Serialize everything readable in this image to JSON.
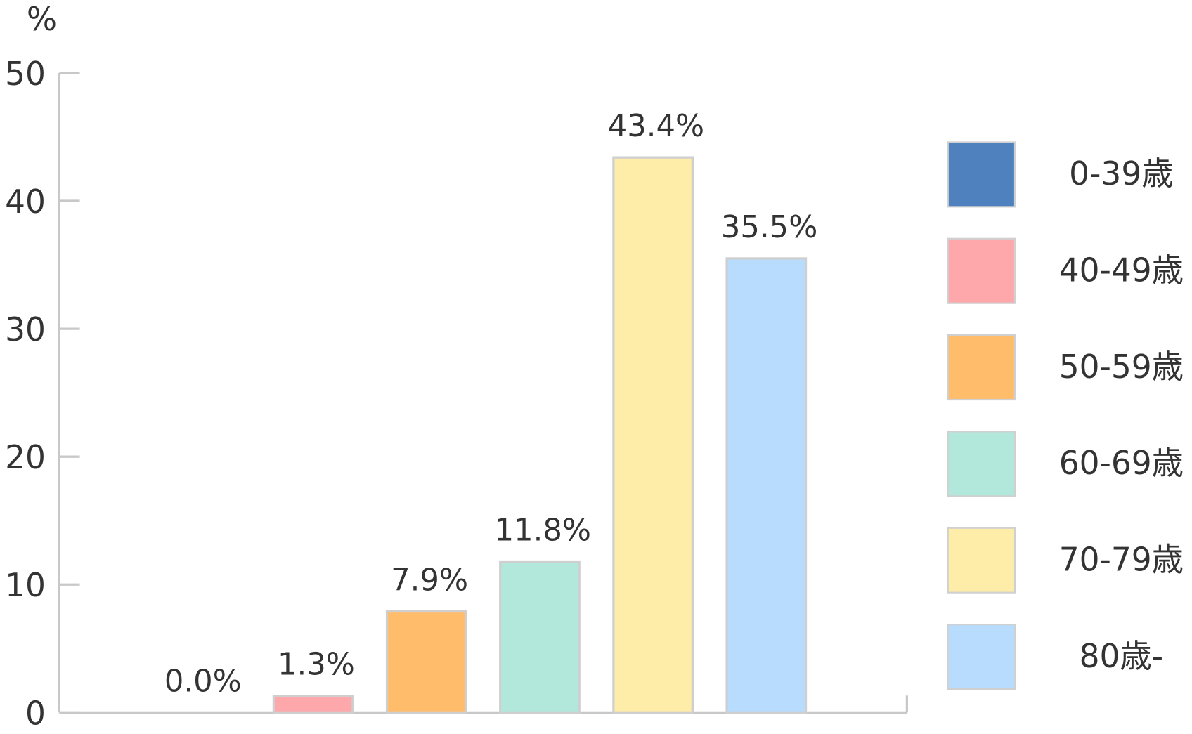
{
  "chart_data": {
    "type": "bar",
    "y_label": "%",
    "categories": [
      "0-39歳",
      "40-49歳",
      "50-59歳",
      "60-69歳",
      "70-79歳",
      "80歳-"
    ],
    "values": [
      0.0,
      1.3,
      7.9,
      11.8,
      43.4,
      35.5
    ],
    "value_labels": [
      "0.0%",
      "1.3%",
      "7.9%",
      "11.8%",
      "43.4%",
      "35.5%"
    ],
    "colors": [
      "#4e81bd",
      "#ffa8ab",
      "#ffbd6b",
      "#b1e8db",
      "#feeca9",
      "#b7dcfe"
    ],
    "ylim": [
      0,
      50
    ],
    "yticks": [
      0,
      10,
      20,
      30,
      40,
      50
    ],
    "legend": "right"
  }
}
